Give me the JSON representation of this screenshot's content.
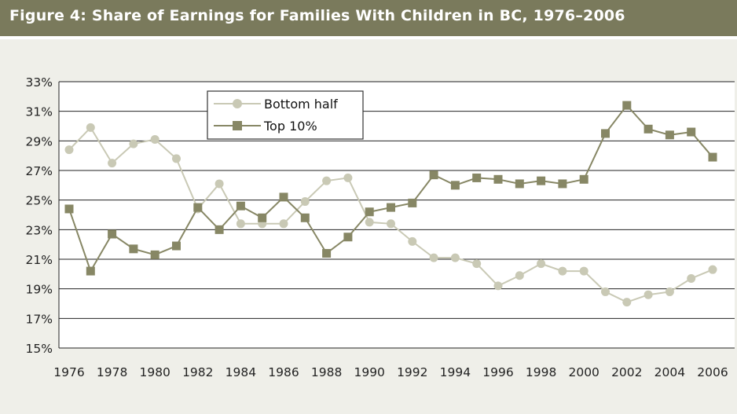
{
  "header": {
    "title": "Figure 4: Share of Earnings for Families With Children in BC, 1976–2006"
  },
  "colors": {
    "header_bg": "#7a7a5c",
    "bottom_half": "#c9c9b5",
    "top_10": "#878765",
    "page_bg": "#efefe9"
  },
  "chart_data": {
    "type": "line",
    "title": "Figure 4: Share of Earnings for Families With Children in BC, 1976–2006",
    "xlabel": "",
    "ylabel": "",
    "ylim": [
      15,
      33
    ],
    "yticks": [
      "15%",
      "17%",
      "19%",
      "21%",
      "23%",
      "25%",
      "27%",
      "29%",
      "31%",
      "33%"
    ],
    "xticks": [
      "1976",
      "1978",
      "1980",
      "1982",
      "1984",
      "1986",
      "1988",
      "1990",
      "1992",
      "1994",
      "1996",
      "1998",
      "2000",
      "2002",
      "2004",
      "2006"
    ],
    "grid": true,
    "legend_position": "top-left",
    "x": [
      1976,
      1977,
      1978,
      1979,
      1980,
      1981,
      1982,
      1983,
      1984,
      1985,
      1986,
      1987,
      1988,
      1989,
      1990,
      1991,
      1992,
      1993,
      1994,
      1995,
      1996,
      1997,
      1998,
      1999,
      2000,
      2001,
      2002,
      2003,
      2004,
      2005,
      2006
    ],
    "series": [
      {
        "name": "Bottom half",
        "marker": "circle",
        "values": [
          28.4,
          29.9,
          27.5,
          28.8,
          29.1,
          27.8,
          24.4,
          26.1,
          23.4,
          23.4,
          23.4,
          24.9,
          26.3,
          26.5,
          23.5,
          23.4,
          22.2,
          21.1,
          21.1,
          20.7,
          19.2,
          19.9,
          20.7,
          20.2,
          20.2,
          18.8,
          18.1,
          18.6,
          18.8,
          19.7,
          20.3
        ]
      },
      {
        "name": "Top 10%",
        "marker": "square",
        "values": [
          24.4,
          20.2,
          22.7,
          21.7,
          21.3,
          21.9,
          24.5,
          23.0,
          24.6,
          23.8,
          25.2,
          23.8,
          21.4,
          22.5,
          24.2,
          24.5,
          24.8,
          26.7,
          26.0,
          26.5,
          26.4,
          26.1,
          26.3,
          26.1,
          26.4,
          29.5,
          31.4,
          29.8,
          29.4,
          29.6,
          27.9
        ]
      }
    ]
  }
}
